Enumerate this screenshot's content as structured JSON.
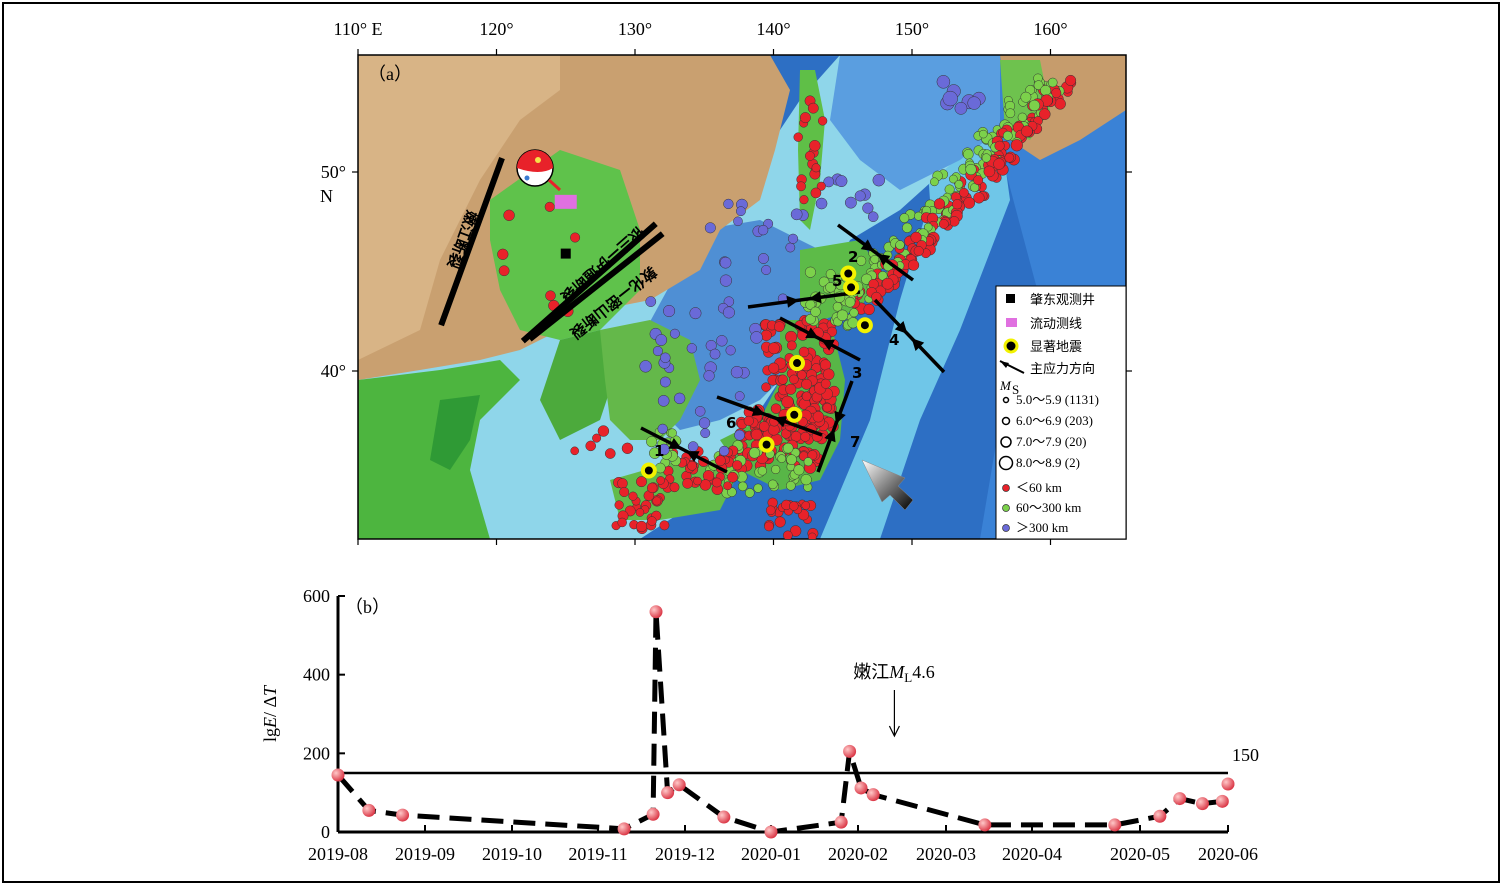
{
  "chart_data": [
    {
      "type": "map",
      "panel_label": "（a）",
      "lon_ticks": [
        "110° E",
        "120°",
        "130°",
        "140°",
        "150°",
        "160°"
      ],
      "lat_ticks": [
        "50°",
        "40°"
      ],
      "lat_unit": "N",
      "faults": [
        {
          "name": "嫩江断裂",
          "start": [
            120.4,
            50.7
          ],
          "end": [
            116.0,
            42.3
          ]
        },
        {
          "name": "依兰—伊通断裂",
          "start": [
            131.5,
            47.4
          ],
          "end": [
            121.9,
            41.5
          ]
        },
        {
          "name": "敦化—密山断裂",
          "start": [
            132.0,
            46.9
          ],
          "end": [
            122.4,
            41.6
          ]
        }
      ],
      "stress_labels": [
        "1",
        "2",
        "3",
        "4",
        "5",
        "6",
        "7"
      ],
      "legend": {
        "well": "肇东观测井",
        "line": "流动测线",
        "eq": "显著地震",
        "stress": "主应力方向",
        "ms_label": "M",
        "ms_sub": "S",
        "ms_classes": [
          {
            "label": "5.0～5.9 (1131)"
          },
          {
            "label": "6.0～6.9 (203)"
          },
          {
            "label": "7.0～7.9 (20)"
          },
          {
            "label": "8.0～8.9 (2)"
          }
        ],
        "depth_classes": [
          {
            "label": "＜60 km",
            "color": "#e8222a"
          },
          {
            "label": "60～300 km",
            "color": "#7cd14b"
          },
          {
            "label": "＞300 km",
            "color": "#6a6ad8"
          }
        ]
      },
      "well": [
        125.0,
        45.9
      ],
      "survey_line": [
        125.0,
        48.5
      ],
      "significant_eq": [
        [
          131.0,
          35.0
        ],
        [
          139.5,
          36.3
        ],
        [
          141.5,
          37.8
        ],
        [
          141.7,
          40.4
        ],
        [
          145.4,
          44.9
        ],
        [
          145.6,
          44.2
        ],
        [
          146.6,
          42.3
        ]
      ],
      "colors": {
        "shallow": "#e8222a",
        "mid": "#7cd14b",
        "deep": "#6a6ad8",
        "eq_ring": "#f2f200"
      }
    },
    {
      "type": "line",
      "panel_label": "（b）",
      "ylabel_pre": "lg",
      "ylabel_e": "E",
      "ylabel_mid": "/ Δ",
      "ylabel_t": "T",
      "ylim": [
        0,
        600
      ],
      "yticks": [
        "0",
        "200",
        "400",
        "600"
      ],
      "xticks": [
        "2019-08",
        "2019-09",
        "2019-10",
        "2019-11",
        "2019-12",
        "2020-01",
        "2020-02",
        "2020-03",
        "2020-04",
        "2020-05",
        "2020-06"
      ],
      "threshold": 150,
      "threshold_label": "150",
      "annotation": {
        "pre": "嫩江",
        "m": "M",
        "sub": "L",
        "post": "4.6",
        "x": "2020-02-13"
      },
      "series": [
        {
          "x": [
            "2019-08-01",
            "2019-08-12",
            "2019-08-24",
            "2019-11-10",
            "2019-11-20",
            "2019-11-21",
            "2019-11-25",
            "2019-11-29",
            "2019-12-15",
            "2020-01-01",
            "2020-01-26",
            "2020-01-29",
            "2020-02-02",
            "2020-02-06",
            "2020-03-15",
            "2020-04-24",
            "2020-05-08",
            "2020-05-15",
            "2020-05-23",
            "2020-05-30",
            "2020-06-01"
          ],
          "values": [
            145,
            55,
            43,
            8,
            45,
            560,
            100,
            120,
            38,
            0,
            25,
            205,
            112,
            95,
            18,
            18,
            40,
            85,
            72,
            78,
            122
          ],
          "color": "#e84b57"
        }
      ]
    }
  ]
}
